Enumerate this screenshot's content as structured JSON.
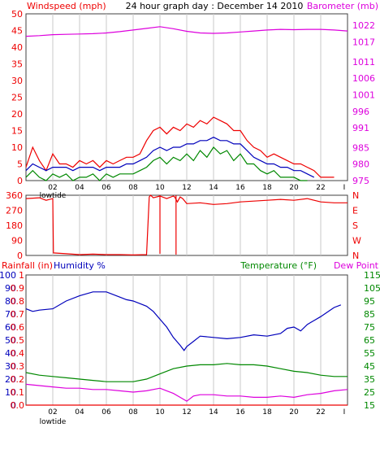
{
  "header": {
    "title": "24 hour graph day : December 14 2010",
    "left_label": "Windspeed (mph)",
    "right_label": "Barometer (mb)"
  },
  "colors": {
    "frame": "#404040",
    "grid": "#c8c8c8",
    "red": "#ee0000",
    "blue": "#0000bb",
    "green": "#008800",
    "magenta": "#dd00dd",
    "title": "#000000"
  },
  "chart_data": [
    {
      "type": "line",
      "panel": "wind",
      "x_ticks": [
        "02",
        "04",
        "06",
        "08",
        "10",
        "12",
        "14",
        "16",
        "18",
        "20",
        "22",
        "I"
      ],
      "x_note": "lowtide",
      "xlim": [
        0,
        24
      ],
      "y_left": {
        "label": "Windspeed (mph)",
        "ticks": [
          0,
          5,
          10,
          15,
          20,
          25,
          30,
          35,
          40,
          45,
          50
        ],
        "lim": [
          0,
          50
        ]
      },
      "y_right": {
        "label": "Barometer (mb)",
        "ticks": [
          975,
          980,
          985,
          991,
          996,
          1001,
          1006,
          1011,
          1017,
          1022
        ],
        "lim": [
          975,
          1025.5
        ]
      },
      "series": [
        {
          "axis": "right",
          "color_key": "magenta",
          "x": [
            0.0,
            1.0,
            2.0,
            3.0,
            4.0,
            5.0,
            6.0,
            7.0,
            8.0,
            9.0,
            10.0,
            11.0,
            12.0,
            13.0,
            14.0,
            15.0,
            16.0,
            17.0,
            18.0,
            19.0,
            20.0,
            21.0,
            22.0,
            23.0,
            24.0
          ],
          "y": [
            1018.7,
            1018.9,
            1019.2,
            1019.3,
            1019.4,
            1019.5,
            1019.7,
            1020.1,
            1020.6,
            1021.1,
            1021.6,
            1021.0,
            1020.2,
            1019.7,
            1019.6,
            1019.7,
            1020.0,
            1020.3,
            1020.6,
            1020.8,
            1020.7,
            1020.8,
            1020.8,
            1020.6,
            1020.3
          ]
        },
        {
          "axis": "left",
          "color_key": "red",
          "x": [
            0.0,
            0.5,
            1.0,
            1.5,
            2.0,
            2.5,
            3.0,
            3.5,
            4.0,
            4.5,
            5.0,
            5.5,
            6.0,
            6.5,
            7.0,
            7.5,
            8.0,
            8.5,
            9.0,
            9.5,
            10.0,
            10.5,
            11.0,
            11.5,
            12.0,
            12.5,
            13.0,
            13.5,
            14.0,
            14.5,
            15.0,
            15.5,
            16.0,
            16.5,
            17.0,
            17.5,
            18.0,
            18.5,
            19.0,
            19.5,
            20.0,
            20.5,
            21.0,
            21.5,
            22.0,
            22.5,
            23.0
          ],
          "y": [
            4,
            10,
            6,
            3,
            8,
            5,
            5,
            4,
            6,
            5,
            6,
            4,
            6,
            5,
            6,
            7,
            7,
            8,
            12,
            15,
            16,
            14,
            16,
            15,
            17,
            16,
            18,
            17,
            19,
            18,
            17,
            15,
            15,
            12,
            10,
            9,
            7,
            8,
            7,
            6,
            5,
            5,
            4,
            3,
            1,
            1,
            1
          ]
        },
        {
          "axis": "left",
          "color_key": "blue",
          "x": [
            0.0,
            0.5,
            1.0,
            1.5,
            2.0,
            2.5,
            3.0,
            3.5,
            4.0,
            4.5,
            5.0,
            5.5,
            6.0,
            6.5,
            7.0,
            7.5,
            8.0,
            8.5,
            9.0,
            9.5,
            10.0,
            10.5,
            11.0,
            11.5,
            12.0,
            12.5,
            13.0,
            13.5,
            14.0,
            14.5,
            15.0,
            15.5,
            16.0,
            16.5,
            17.0,
            17.5,
            18.0,
            18.5,
            19.0,
            19.5,
            20.0,
            20.5,
            21.0,
            21.5
          ],
          "y": [
            3,
            5,
            4,
            3,
            4,
            4,
            4,
            3,
            4,
            4,
            4,
            3,
            4,
            4,
            4,
            5,
            5,
            6,
            7,
            9,
            10,
            9,
            10,
            10,
            11,
            11,
            12,
            12,
            13,
            12,
            12,
            11,
            11,
            9,
            7,
            6,
            5,
            5,
            4,
            4,
            3,
            3,
            2,
            1
          ]
        },
        {
          "axis": "left",
          "color_key": "green",
          "x": [
            0.0,
            0.5,
            1.0,
            1.5,
            2.0,
            2.5,
            3.0,
            3.5,
            4.0,
            4.5,
            5.0,
            5.5,
            6.0,
            6.5,
            7.0,
            7.5,
            8.0,
            8.5,
            9.0,
            9.5,
            10.0,
            10.5,
            11.0,
            11.5,
            12.0,
            12.5,
            13.0,
            13.5,
            14.0,
            14.5,
            15.0,
            15.5,
            16.0,
            16.5,
            17.0,
            17.5,
            18.0,
            18.5,
            19.0,
            19.5,
            20.0,
            20.5,
            21.0
          ],
          "y": [
            1,
            3,
            1,
            0,
            2,
            1,
            2,
            0,
            1,
            1,
            2,
            0,
            2,
            1,
            2,
            2,
            2,
            3,
            4,
            6,
            7,
            5,
            7,
            6,
            8,
            6,
            9,
            7,
            10,
            8,
            9,
            6,
            8,
            5,
            5,
            3,
            2,
            3,
            1,
            1,
            1,
            0,
            0
          ]
        }
      ]
    },
    {
      "type": "line",
      "panel": "direction",
      "xlim": [
        0,
        24
      ],
      "y_left": {
        "ticks": [
          0,
          90,
          180,
          270,
          360
        ],
        "lim": [
          0,
          360
        ]
      },
      "y_right": {
        "ticks": [
          "N",
          "E",
          "S",
          "W",
          "N"
        ]
      },
      "series": [
        {
          "axis": "left",
          "color_key": "red",
          "x": [
            0.0,
            1.0,
            1.5,
            2.0,
            2.05,
            3.0,
            4.0,
            5.0,
            6.0,
            7.0,
            8.0,
            9.0,
            9.2,
            9.3,
            9.5,
            10.0,
            10.5,
            11.0,
            11.1,
            11.3,
            11.5,
            11.7,
            12.0,
            13.0,
            14.0,
            15.0,
            16.0,
            17.0,
            18.0,
            19.0,
            20.0,
            21.0,
            22.0,
            23.0,
            24.0
          ],
          "y": [
            340,
            345,
            330,
            340,
            15,
            10,
            5,
            8,
            5,
            5,
            3,
            5,
            350,
            360,
            345,
            355,
            340,
            355,
            350,
            320,
            350,
            340,
            310,
            315,
            305,
            310,
            320,
            325,
            330,
            335,
            330,
            340,
            320,
            315,
            315
          ]
        },
        {
          "axis": "left",
          "color_key": "red",
          "x": [
            10.0,
            10.0
          ],
          "y": [
            360,
            10
          ]
        },
        {
          "axis": "left",
          "color_key": "red",
          "x": [
            11.2,
            11.2
          ],
          "y": [
            360,
            5
          ]
        }
      ]
    },
    {
      "type": "line",
      "panel": "humidity",
      "x_ticks": [
        "02",
        "04",
        "06",
        "08",
        "10",
        "12",
        "14",
        "16",
        "18",
        "20",
        "22",
        "I"
      ],
      "x_note": "lowtide",
      "xlim": [
        0,
        24
      ],
      "labels": {
        "rainfall": "Rainfall (in)",
        "humidity": "Humidity %",
        "temperature": "Temperature (°F)",
        "dewpoint": "Dew Point"
      },
      "y_humidity": {
        "ticks": [
          0,
          10,
          20,
          30,
          40,
          50,
          60,
          70,
          80,
          90,
          100
        ],
        "lim": [
          0,
          100
        ]
      },
      "y_rain": {
        "ticks": [
          "0.0",
          "0.1",
          "0.2",
          "0.3",
          "0.4",
          "0.5",
          "0.6",
          "0.7",
          "0.8",
          "0.9",
          "1"
        ],
        "lim": [
          0,
          1
        ]
      },
      "y_temp": {
        "ticks": [
          15,
          25,
          35,
          45,
          55,
          65,
          75,
          85,
          95,
          105,
          115
        ],
        "lim": [
          15,
          115
        ]
      },
      "series": [
        {
          "axis": "humidity",
          "color_key": "blue",
          "x": [
            0.0,
            0.5,
            1.0,
            2.0,
            3.0,
            4.0,
            5.0,
            6.0,
            7.0,
            7.5,
            8.0,
            8.5,
            9.0,
            9.5,
            10.0,
            10.5,
            11.0,
            11.5,
            11.8,
            12.0,
            12.5,
            13.0,
            14.0,
            15.0,
            16.0,
            17.0,
            18.0,
            19.0,
            19.5,
            20.0,
            20.5,
            21.0,
            21.5,
            22.0,
            23.0,
            23.5
          ],
          "y": [
            74,
            72,
            73,
            74,
            80,
            84,
            87,
            87,
            83,
            81,
            80,
            78,
            76,
            72,
            66,
            60,
            52,
            46,
            42,
            45,
            49,
            53,
            52,
            51,
            52,
            54,
            53,
            55,
            59,
            60,
            57,
            62,
            65,
            68,
            75,
            77
          ]
        },
        {
          "axis": "temp",
          "color_key": "green",
          "x": [
            0.0,
            1.0,
            2.0,
            3.0,
            4.0,
            5.0,
            6.0,
            7.0,
            8.0,
            9.0,
            10.0,
            11.0,
            12.0,
            13.0,
            14.0,
            15.0,
            16.0,
            17.0,
            18.0,
            19.0,
            20.0,
            21.0,
            22.0,
            23.0,
            24.0
          ],
          "y": [
            40,
            38,
            37,
            36,
            35,
            34,
            33,
            33,
            33,
            35,
            39,
            43,
            45,
            46,
            46,
            47,
            46,
            46,
            45,
            43,
            41,
            40,
            38,
            37,
            37
          ]
        },
        {
          "axis": "temp",
          "color_key": "magenta",
          "x": [
            0.0,
            1.0,
            2.0,
            3.0,
            4.0,
            5.0,
            6.0,
            7.0,
            8.0,
            9.0,
            10.0,
            10.5,
            11.0,
            11.5,
            12.0,
            12.5,
            13.0,
            14.0,
            15.0,
            16.0,
            17.0,
            18.0,
            19.0,
            20.0,
            21.0,
            22.0,
            23.0,
            24.0
          ],
          "y": [
            31,
            30,
            29,
            28,
            28,
            27,
            27,
            26,
            25,
            26,
            28,
            26,
            24,
            21,
            18,
            22,
            23,
            23,
            22,
            22,
            21,
            21,
            22,
            21,
            23,
            24,
            26,
            27
          ]
        },
        {
          "axis": "rain",
          "color_key": "red",
          "x": [
            0.0,
            24.0
          ],
          "y": [
            0,
            0
          ]
        }
      ]
    }
  ]
}
